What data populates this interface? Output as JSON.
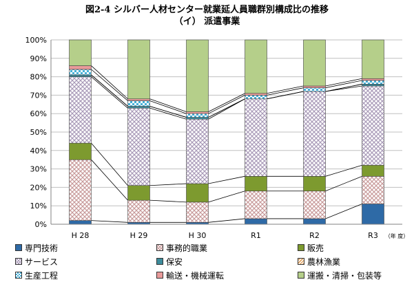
{
  "title": {
    "line1": "図2-4 シルバー人材センター就業延人員職群別構成比の推移",
    "line2": "（イ） 派遣事業"
  },
  "chart_data": {
    "type": "bar",
    "stacked": true,
    "percent": true,
    "categories": [
      "H 28",
      "H 29",
      "H 30",
      "R1",
      "R2",
      "R3"
    ],
    "x_unit_label": "（年 度）",
    "ylim": [
      0,
      100
    ],
    "yticks": [
      "0%",
      "10%",
      "20%",
      "30%",
      "40%",
      "50%",
      "60%",
      "70%",
      "80%",
      "90%",
      "100%"
    ],
    "grid": true,
    "legend_position": "bottom",
    "series": [
      {
        "name": "専門技術",
        "color": "#2e6aa6",
        "pattern": "solid",
        "values": [
          2,
          1,
          1,
          3,
          3,
          11
        ]
      },
      {
        "name": "事務的職業",
        "color": "#c89a9a",
        "pattern": "crosshatch",
        "values": [
          33,
          12,
          11,
          15,
          15,
          15
        ]
      },
      {
        "name": "販売",
        "color": "#7d9a2f",
        "pattern": "solid",
        "values": [
          9,
          8,
          10,
          8,
          8,
          6
        ]
      },
      {
        "name": "サービス",
        "color": "#a99ab8",
        "pattern": "crosshatch",
        "values": [
          36,
          42,
          35,
          42,
          46,
          43
        ]
      },
      {
        "name": "保安",
        "color": "#3d8c9c",
        "pattern": "solid",
        "values": [
          1,
          1,
          1,
          0,
          0,
          1
        ]
      },
      {
        "name": "農林漁業",
        "color": "#e2a25e",
        "pattern": "diagonal",
        "values": [
          0,
          0,
          0,
          0,
          0,
          0
        ]
      },
      {
        "name": "生産工程",
        "color": "#46b0d8",
        "pattern": "checker",
        "values": [
          3,
          3,
          2,
          2,
          2,
          2
        ]
      },
      {
        "name": "輸送・機械運転",
        "color": "#e89a9a",
        "pattern": "solid",
        "values": [
          2,
          1,
          1,
          1,
          1,
          1
        ]
      },
      {
        "name": "運搬・清掃・包装等",
        "color": "#b5cf8a",
        "pattern": "solid",
        "values": [
          14,
          32,
          39,
          29,
          25,
          21
        ]
      }
    ]
  }
}
